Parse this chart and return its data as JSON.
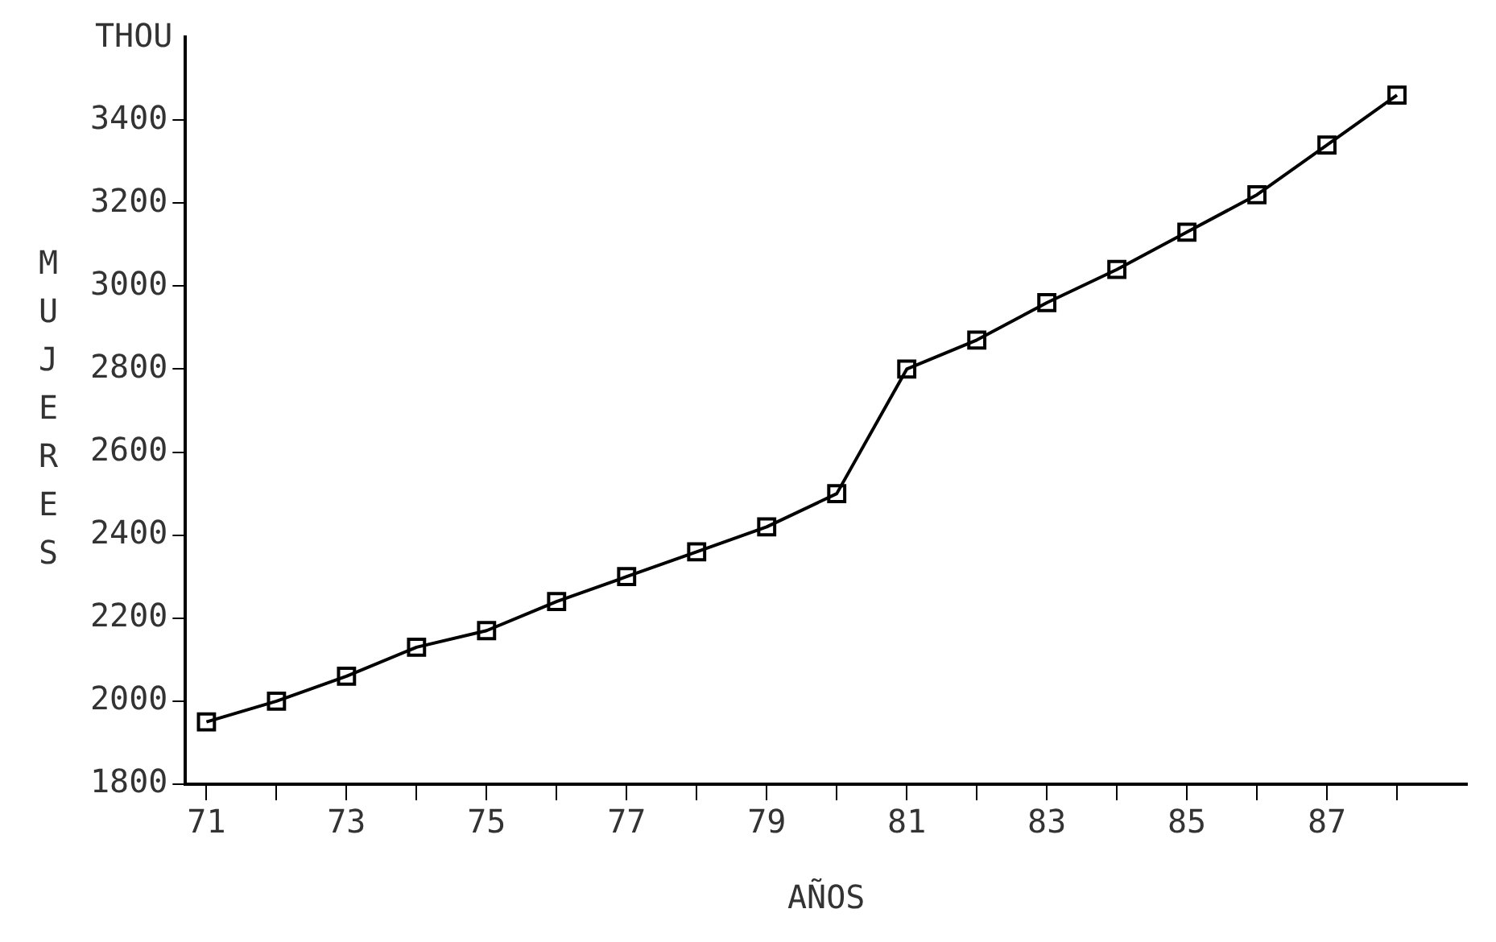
{
  "chart_data": {
    "type": "line",
    "xlabel": "AÑOS",
    "ylabel": "MUJERES",
    "annotations": [
      "THOU"
    ],
    "x": [
      71,
      72,
      73,
      74,
      75,
      76,
      77,
      78,
      79,
      80,
      81,
      82,
      83,
      84,
      85,
      86,
      87,
      88
    ],
    "series": [
      {
        "color": "#000000",
        "values": [
          1950,
          2000,
          2060,
          2130,
          2170,
          2240,
          2300,
          2360,
          2420,
          2500,
          2800,
          2870,
          2960,
          3040,
          3130,
          3220,
          3340,
          3460
        ]
      }
    ],
    "xlim": [
      70.7,
      89
    ],
    "xticks": [
      71,
      {
        "value": 72,
        "label": null
      },
      73,
      {
        "value": 74,
        "label": null
      },
      75,
      {
        "value": 76,
        "label": null
      },
      77,
      {
        "value": 78,
        "label": null
      },
      79,
      {
        "value": 80,
        "label": null
      },
      81,
      {
        "value": 82,
        "label": null
      },
      83,
      {
        "value": 84,
        "label": null
      },
      85,
      {
        "value": 86,
        "label": null
      },
      87,
      {
        "value": 88,
        "label": null
      }
    ],
    "ylim": [
      1800,
      3600
    ],
    "yticks": [
      1800,
      2000,
      2200,
      2400,
      2600,
      2800,
      3000,
      3200,
      3400
    ],
    "grid": false,
    "legend": false,
    "marker": "square",
    "line_style": "solid"
  }
}
